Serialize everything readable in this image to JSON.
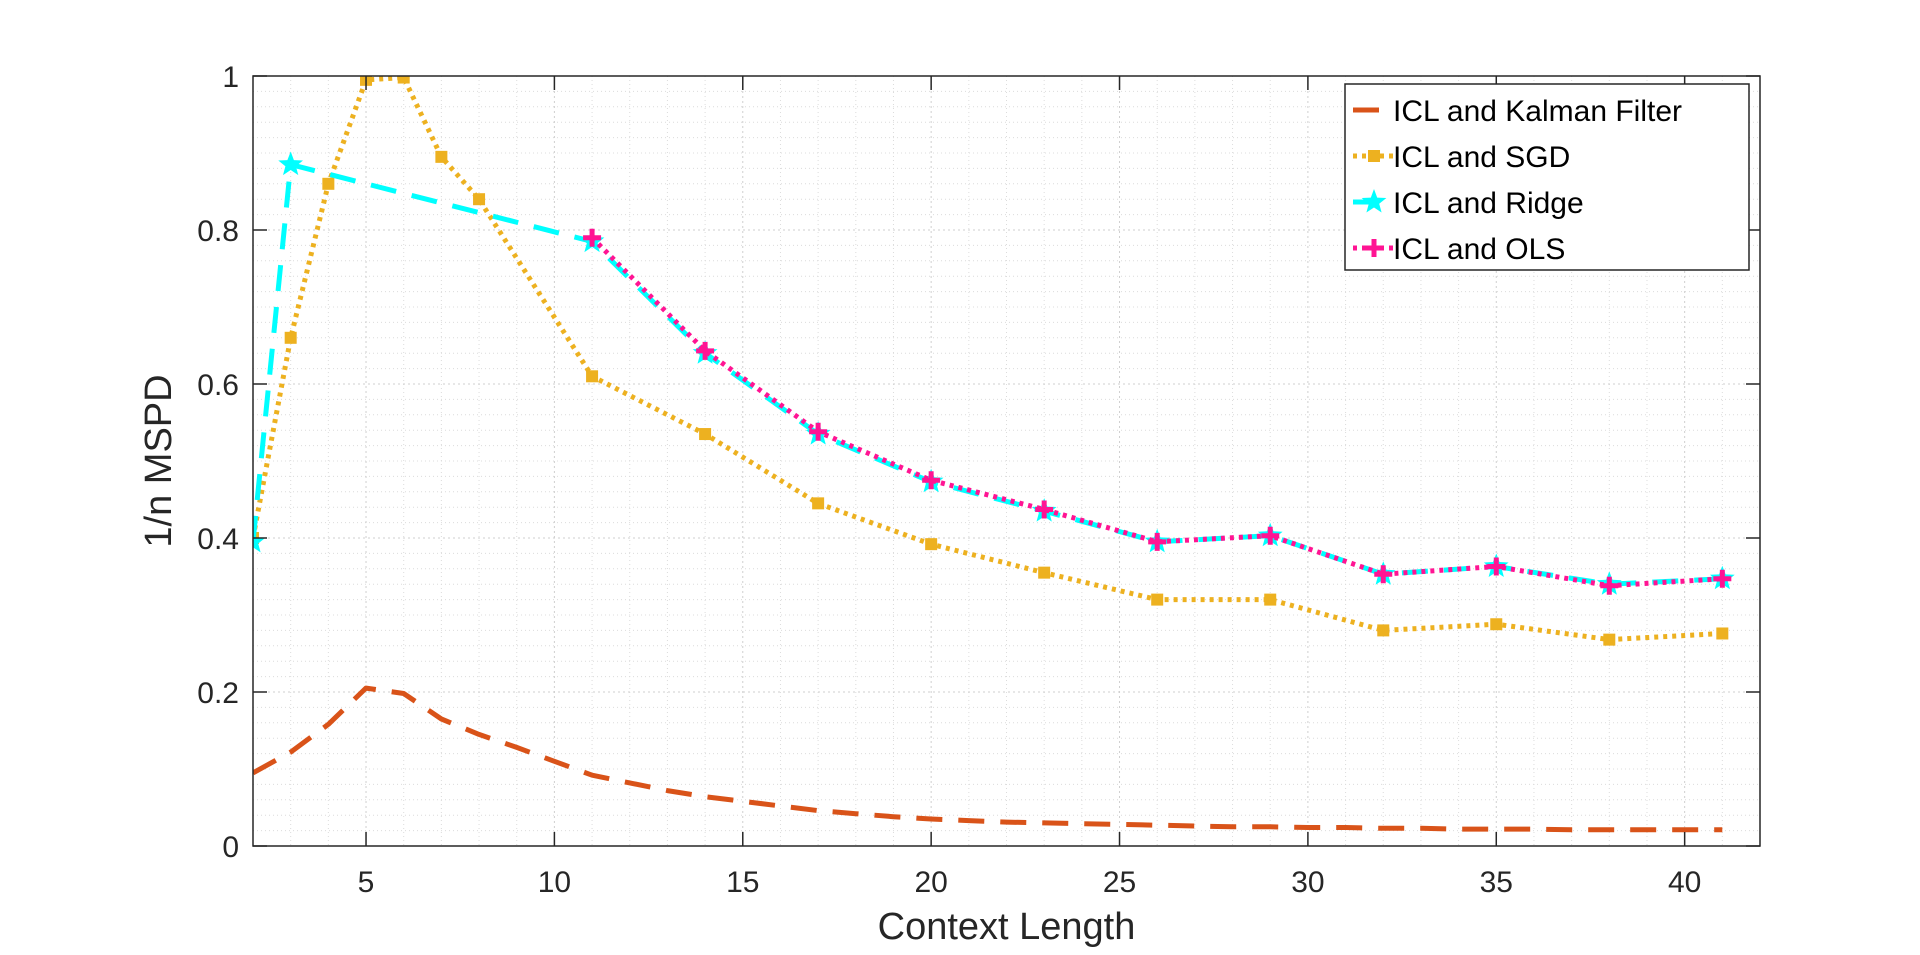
{
  "chart_data": {
    "type": "line",
    "title": "",
    "xlabel": "Context Length",
    "ylabel": "1/n MSPD",
    "xlim": [
      2,
      42
    ],
    "ylim": [
      0,
      1
    ],
    "xticks": [
      5,
      10,
      15,
      20,
      25,
      30,
      35,
      40
    ],
    "yticks": [
      0,
      0.2,
      0.4,
      0.6,
      0.8,
      1
    ],
    "xtick_labels": [
      "5",
      "10",
      "15",
      "20",
      "25",
      "30",
      "35",
      "40"
    ],
    "ytick_labels": [
      "0",
      "0.2",
      "0.4",
      "0.6",
      "0.8",
      "1"
    ],
    "grid": true,
    "minor_grid": true,
    "legend_position": "top-right",
    "series": [
      {
        "name": "ICL and Kalman Filter",
        "color": "#D95319",
        "line_style": "dashed",
        "marker": "none",
        "x": [
          2,
          3,
          4,
          5,
          6,
          7,
          8,
          9,
          10,
          11,
          12,
          13,
          14,
          15,
          16,
          17,
          18,
          19,
          20,
          21,
          22,
          23,
          24,
          25,
          26,
          27,
          28,
          29,
          30,
          31,
          32,
          33,
          34,
          35,
          36,
          37,
          38,
          39,
          40,
          41
        ],
        "y": [
          0.095,
          0.122,
          0.158,
          0.205,
          0.198,
          0.165,
          0.145,
          0.128,
          0.11,
          0.092,
          0.082,
          0.072,
          0.064,
          0.058,
          0.052,
          0.046,
          0.042,
          0.038,
          0.035,
          0.033,
          0.031,
          0.03,
          0.029,
          0.028,
          0.027,
          0.026,
          0.025,
          0.025,
          0.024,
          0.024,
          0.023,
          0.023,
          0.022,
          0.022,
          0.022,
          0.021,
          0.021,
          0.021,
          0.021,
          0.021
        ]
      },
      {
        "name": "ICL and SGD",
        "color": "#EDB120",
        "line_style": "dotted",
        "marker": "square",
        "x": [
          2,
          3,
          4,
          5,
          6,
          7,
          8,
          11,
          14,
          17,
          20,
          23,
          26,
          29,
          32,
          35,
          38,
          41
        ],
        "y": [
          0.4,
          0.66,
          0.86,
          0.995,
          0.998,
          0.895,
          0.84,
          0.61,
          0.535,
          0.445,
          0.392,
          0.355,
          0.32,
          0.32,
          0.28,
          0.288,
          0.268,
          0.276
        ]
      },
      {
        "name": "ICL and Ridge",
        "color": "#00FFFF",
        "line_style": "dashed",
        "marker": "star",
        "x": [
          2,
          3,
          11,
          14,
          17,
          20,
          23,
          26,
          29,
          32,
          35,
          38,
          41
        ],
        "y": [
          0.395,
          0.885,
          0.785,
          0.64,
          0.535,
          0.473,
          0.435,
          0.395,
          0.403,
          0.353,
          0.363,
          0.34,
          0.347
        ]
      },
      {
        "name": "ICL and OLS",
        "color": "#FF1493",
        "line_style": "dotted",
        "marker": "plus",
        "x": [
          11,
          14,
          17,
          20,
          23,
          26,
          29,
          32,
          35,
          38,
          41
        ],
        "y": [
          0.79,
          0.643,
          0.538,
          0.475,
          0.437,
          0.395,
          0.403,
          0.353,
          0.363,
          0.338,
          0.347
        ]
      }
    ]
  }
}
